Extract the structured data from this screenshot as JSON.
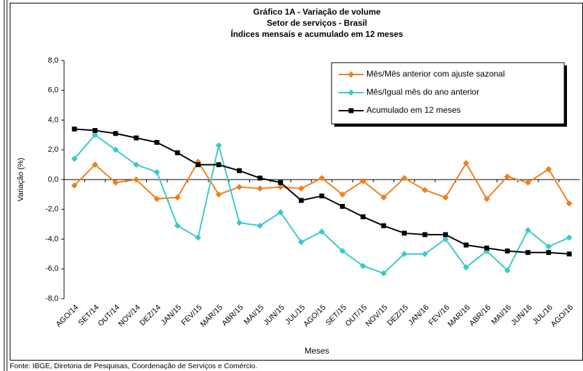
{
  "chart_data": {
    "type": "line",
    "title": "Gráfico 1A - Variação de volume",
    "subtitle": [
      "Setor de serviços - Brasil",
      "Índices mensais e acumulado em 12 meses"
    ],
    "x_label": "Meses",
    "y_label": "Variação (%)",
    "source": "Fonte: IBGE, Diretoria de Pesquisas, Coordenação de Serviços e Comércio.",
    "categories": [
      "AGO/14",
      "SET/14",
      "OUT/14",
      "NOV/14",
      "DEZ/14",
      "JAN/15",
      "FEV/15",
      "MAR/15",
      "ABR/15",
      "MAI/15",
      "JUN/15",
      "JUL/15",
      "AGO/15",
      "SET/15",
      "OUT/15",
      "NOV/15",
      "DEZ/15",
      "JAN/16",
      "FEV/16",
      "MAR/16",
      "ABR/16",
      "MAI/16",
      "JUN/16",
      "JUL/16",
      "AGO/16"
    ],
    "series": [
      {
        "name": "Mês/Mês anterior com ajuste sazonal",
        "color": "#f07f1f",
        "marker": "diamond",
        "values": [
          -0.4,
          1.0,
          -0.2,
          0.0,
          -1.3,
          -1.2,
          1.2,
          -1.0,
          -0.5,
          -0.6,
          -0.5,
          -0.6,
          0.1,
          -1.0,
          -0.1,
          -1.2,
          0.1,
          -0.7,
          -1.2,
          1.1,
          -1.3,
          0.2,
          -0.2,
          0.7,
          -1.6
        ]
      },
      {
        "name": "Mês/Igual mês do ano anterior",
        "color": "#3cc8c8",
        "marker": "diamond",
        "values": [
          1.4,
          3.0,
          2.0,
          1.0,
          0.5,
          -3.1,
          -3.9,
          2.3,
          -2.9,
          -3.1,
          -2.2,
          -4.2,
          -3.5,
          -4.8,
          -5.8,
          -6.3,
          -5.0,
          -5.0,
          -4.0,
          -5.9,
          -4.8,
          -6.1,
          -3.4,
          -4.5,
          -3.9
        ]
      },
      {
        "name": "Acumulado em 12 meses",
        "color": "#000000",
        "marker": "square",
        "values": [
          3.4,
          3.3,
          3.1,
          2.8,
          2.5,
          1.8,
          1.0,
          1.0,
          0.6,
          0.1,
          -0.2,
          -1.4,
          -1.1,
          -1.8,
          -2.5,
          -3.1,
          -3.6,
          -3.7,
          -3.7,
          -4.4,
          -4.6,
          -4.8,
          -4.9,
          -4.9,
          -5.0
        ]
      }
    ],
    "ylim": [
      -8,
      8
    ],
    "yticks": [
      {
        "value": -8,
        "label": "-8,0"
      },
      {
        "value": -6,
        "label": "-6,0"
      },
      {
        "value": -4,
        "label": "-4,0"
      },
      {
        "value": -2,
        "label": "-2,0"
      },
      {
        "value": 0,
        "label": "0,0"
      },
      {
        "value": 2,
        "label": "2,0"
      },
      {
        "value": 4,
        "label": "4,0"
      },
      {
        "value": 6,
        "label": "6,0"
      },
      {
        "value": 8,
        "label": "8,0"
      }
    ],
    "grid": false,
    "legend": "upper right"
  }
}
